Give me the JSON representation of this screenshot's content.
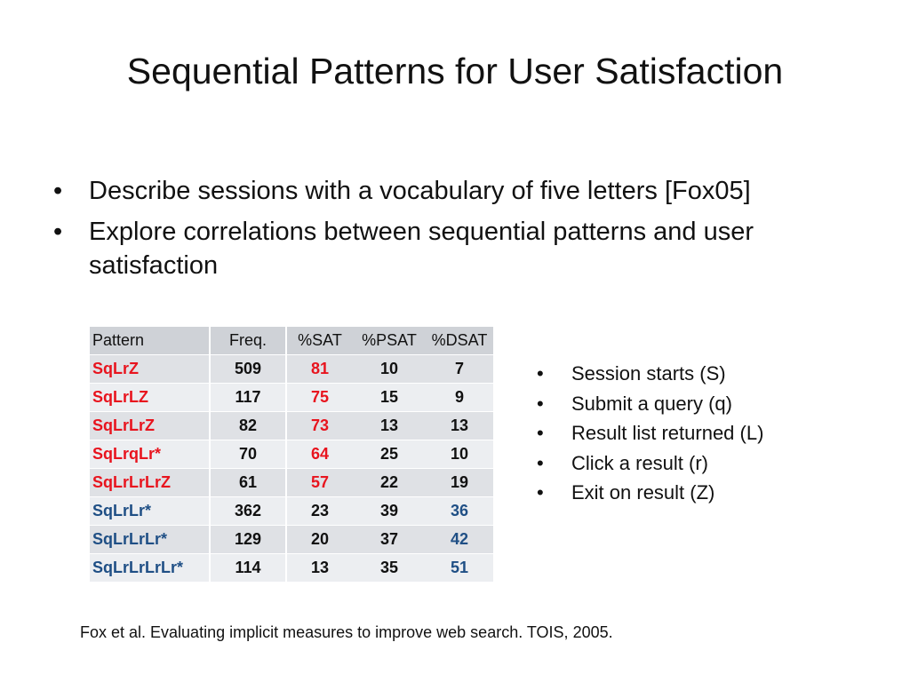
{
  "title": "Sequential Patterns for User Satisfaction",
  "bullets": [
    "Describe sessions with a vocabulary of five letters [Fox05]",
    "Explore correlations between sequential patterns and user satisfaction"
  ],
  "bullet_marker": "•",
  "table": {
    "headers": [
      "Pattern",
      "Freq.",
      "%SAT",
      "%PSAT",
      "%DSAT"
    ],
    "rows": [
      {
        "pattern": "SqLrZ",
        "freq": "509",
        "sat": "81",
        "psat": "10",
        "dsat": "7",
        "highlight": "sat"
      },
      {
        "pattern": "SqLrLZ",
        "freq": "117",
        "sat": "75",
        "psat": "15",
        "dsat": "9",
        "highlight": "sat"
      },
      {
        "pattern": "SqLrLrZ",
        "freq": "82",
        "sat": "73",
        "psat": "13",
        "dsat": "13",
        "highlight": "sat"
      },
      {
        "pattern": "SqLrqLr*",
        "freq": "70",
        "sat": "64",
        "psat": "25",
        "dsat": "10",
        "highlight": "sat"
      },
      {
        "pattern": "SqLrLrLrZ",
        "freq": "61",
        "sat": "57",
        "psat": "22",
        "dsat": "19",
        "highlight": "sat"
      },
      {
        "pattern": "SqLrLr*",
        "freq": "362",
        "sat": "23",
        "psat": "39",
        "dsat": "36",
        "highlight": "dsat"
      },
      {
        "pattern": "SqLrLrLr*",
        "freq": "129",
        "sat": "20",
        "psat": "37",
        "dsat": "42",
        "highlight": "dsat"
      },
      {
        "pattern": "SqLrLrLrLr*",
        "freq": "114",
        "sat": "13",
        "psat": "35",
        "dsat": "51",
        "highlight": "dsat"
      }
    ],
    "colors": {
      "sat_highlight": "#e8141e",
      "dsat_highlight": "#1f4f85",
      "header_bg": "#cfd2d7",
      "row_bg_odd": "#dfe1e5",
      "row_bg_even": "#eceef1"
    }
  },
  "legend": [
    "Session starts (S)",
    "Submit a query (q)",
    "Result list returned (L)",
    "Click a result (r)",
    "Exit on result (Z)"
  ],
  "citation": "Fox et al. Evaluating implicit measures to improve web search. TOIS, 2005."
}
